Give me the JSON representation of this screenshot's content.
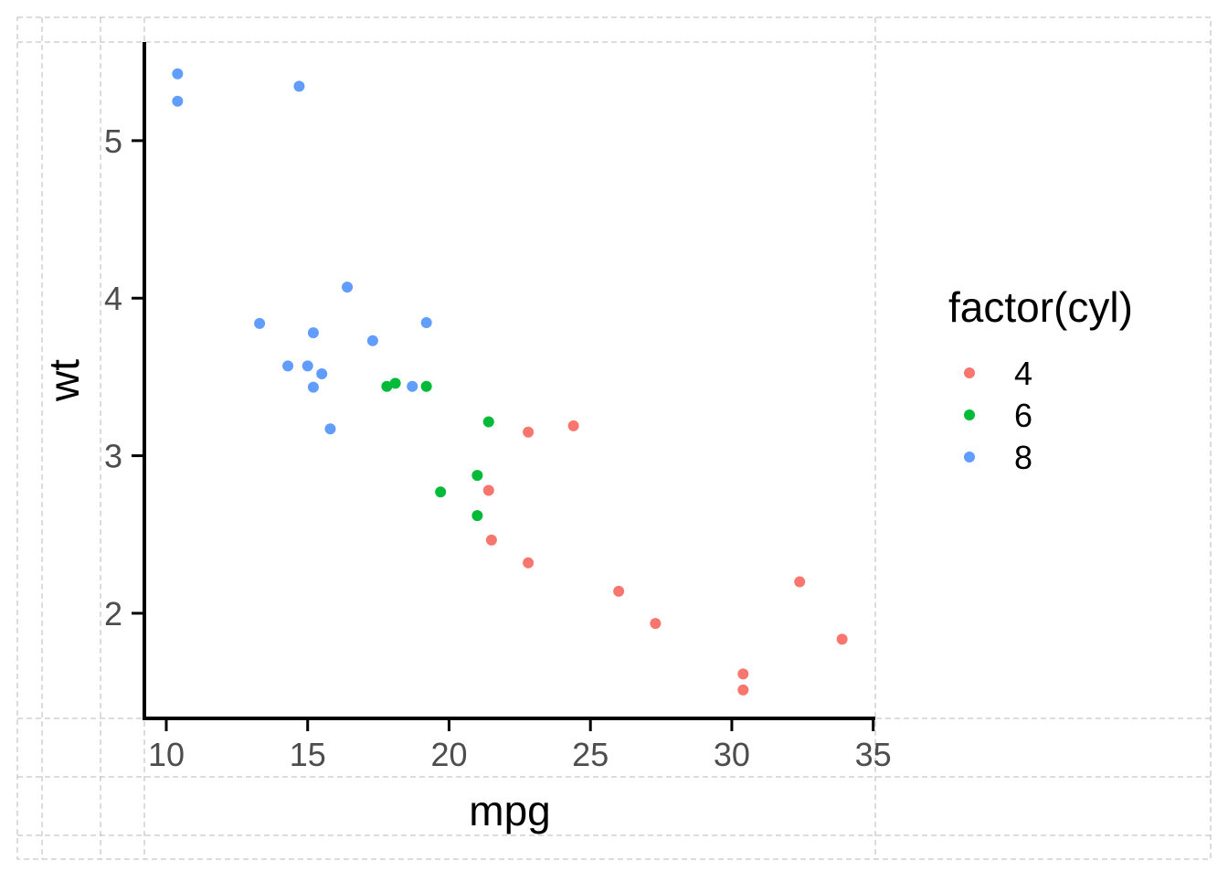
{
  "chart_data": {
    "type": "scatter",
    "title": "",
    "xlabel": "mpg",
    "ylabel": "wt",
    "xlim": [
      9.225,
      35.075
    ],
    "ylim": [
      1.3326,
      5.6259
    ],
    "x_ticks": [
      10,
      15,
      20,
      25,
      30,
      35
    ],
    "y_ticks": [
      2,
      3,
      4,
      5
    ],
    "x_tick_labels": [
      "10",
      "15",
      "20",
      "25",
      "30",
      "35"
    ],
    "y_tick_labels": [
      "2",
      "3",
      "4",
      "5"
    ],
    "grid": false,
    "legend": {
      "title": "factor(cyl)",
      "position": "right",
      "entries": [
        "4",
        "6",
        "8"
      ]
    },
    "colors": {
      "4": "#F8766D",
      "6": "#00BA38",
      "8": "#619CFF"
    },
    "series": [
      {
        "name": "4",
        "points": [
          {
            "x": 22.8,
            "y": 2.32
          },
          {
            "x": 24.4,
            "y": 3.19
          },
          {
            "x": 22.8,
            "y": 3.15
          },
          {
            "x": 32.4,
            "y": 2.2
          },
          {
            "x": 30.4,
            "y": 1.615
          },
          {
            "x": 33.9,
            "y": 1.835
          },
          {
            "x": 21.5,
            "y": 2.465
          },
          {
            "x": 27.3,
            "y": 1.935
          },
          {
            "x": 26.0,
            "y": 2.14
          },
          {
            "x": 30.4,
            "y": 1.513
          },
          {
            "x": 21.4,
            "y": 2.78
          }
        ]
      },
      {
        "name": "6",
        "points": [
          {
            "x": 21.0,
            "y": 2.62
          },
          {
            "x": 21.0,
            "y": 2.875
          },
          {
            "x": 21.4,
            "y": 3.215
          },
          {
            "x": 18.1,
            "y": 3.46
          },
          {
            "x": 19.2,
            "y": 3.44
          },
          {
            "x": 17.8,
            "y": 3.44
          },
          {
            "x": 19.7,
            "y": 2.77
          }
        ]
      },
      {
        "name": "8",
        "points": [
          {
            "x": 18.7,
            "y": 3.44
          },
          {
            "x": 14.3,
            "y": 3.57
          },
          {
            "x": 16.4,
            "y": 4.07
          },
          {
            "x": 17.3,
            "y": 3.73
          },
          {
            "x": 15.2,
            "y": 3.78
          },
          {
            "x": 10.4,
            "y": 5.25
          },
          {
            "x": 10.4,
            "y": 5.424
          },
          {
            "x": 14.7,
            "y": 5.345
          },
          {
            "x": 15.5,
            "y": 3.52
          },
          {
            "x": 15.2,
            "y": 3.435
          },
          {
            "x": 13.3,
            "y": 3.84
          },
          {
            "x": 19.2,
            "y": 3.845
          },
          {
            "x": 15.8,
            "y": 3.17
          },
          {
            "x": 15.0,
            "y": 3.57
          }
        ]
      }
    ]
  }
}
